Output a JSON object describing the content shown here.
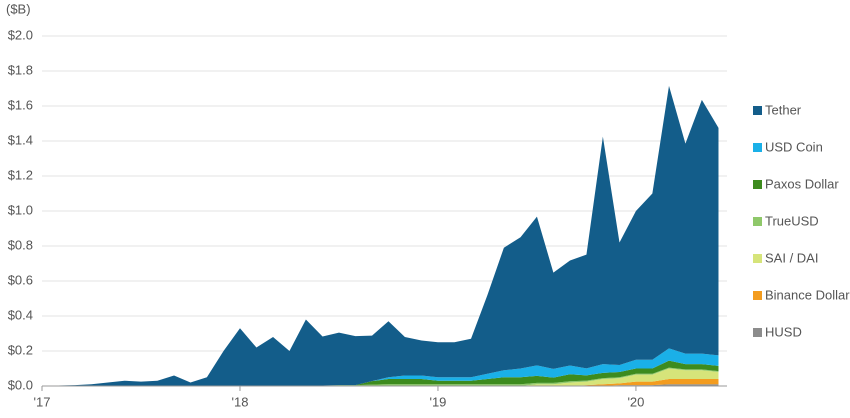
{
  "chart_data": {
    "type": "stacked_area",
    "y_axis_label": "($B)",
    "xlim": [
      2017,
      2020.46
    ],
    "xticks": [
      {
        "value": 2017,
        "label": "'17"
      },
      {
        "value": 2018,
        "label": "'18"
      },
      {
        "value": 2019,
        "label": "'19"
      },
      {
        "value": 2020,
        "label": "'20"
      }
    ],
    "ylim": [
      0,
      2.0
    ],
    "yticks": [
      {
        "value": 0,
        "label": "$0.0"
      },
      {
        "value": 0.2,
        "label": "$0.2"
      },
      {
        "value": 0.4,
        "label": "$0.4"
      },
      {
        "value": 0.6,
        "label": "$0.6"
      },
      {
        "value": 0.8,
        "label": "$0.8"
      },
      {
        "value": 1.0,
        "label": "$1.0"
      },
      {
        "value": 1.2,
        "label": "$1.2"
      },
      {
        "value": 1.4,
        "label": "$1.4"
      },
      {
        "value": 1.6,
        "label": "$1.6"
      },
      {
        "value": 1.8,
        "label": "$1.8"
      },
      {
        "value": 2.0,
        "label": "$2.0"
      }
    ],
    "grid": true,
    "legend": "right",
    "x": [
      2017.0,
      2017.083,
      2017.167,
      2017.25,
      2017.333,
      2017.417,
      2017.5,
      2017.583,
      2017.667,
      2017.75,
      2017.833,
      2017.917,
      2018.0,
      2018.083,
      2018.167,
      2018.25,
      2018.333,
      2018.417,
      2018.5,
      2018.583,
      2018.667,
      2018.75,
      2018.833,
      2018.917,
      2019.0,
      2019.083,
      2019.167,
      2019.25,
      2019.333,
      2019.417,
      2019.5,
      2019.583,
      2019.667,
      2019.75,
      2019.833,
      2019.917,
      2020.0,
      2020.083,
      2020.167,
      2020.25,
      2020.333,
      2020.417
    ],
    "series": [
      {
        "name": "Tether",
        "color": "#135d8a",
        "values": [
          0.002,
          0.003,
          0.005,
          0.01,
          0.02,
          0.03,
          0.025,
          0.03,
          0.06,
          0.02,
          0.05,
          0.2,
          0.33,
          0.22,
          0.28,
          0.2,
          0.38,
          0.28,
          0.3,
          0.28,
          0.26,
          0.32,
          0.22,
          0.2,
          0.2,
          0.2,
          0.22,
          0.45,
          0.7,
          0.75,
          0.85,
          0.55,
          0.6,
          0.65,
          1.3,
          0.7,
          0.85,
          0.95,
          1.5,
          1.2,
          1.45,
          1.3
        ]
      },
      {
        "name": "USD Coin",
        "color": "#1ab0e8",
        "values": [
          0,
          0,
          0,
          0,
          0,
          0,
          0,
          0,
          0,
          0,
          0,
          0,
          0,
          0,
          0,
          0,
          0,
          0,
          0,
          0,
          0,
          0.01,
          0.02,
          0.02,
          0.02,
          0.02,
          0.02,
          0.03,
          0.04,
          0.05,
          0.06,
          0.05,
          0.05,
          0.04,
          0.05,
          0.04,
          0.05,
          0.05,
          0.07,
          0.06,
          0.06,
          0.06
        ]
      },
      {
        "name": "Paxos Dollar",
        "color": "#3d8b1e",
        "values": [
          0,
          0,
          0,
          0,
          0,
          0,
          0,
          0,
          0,
          0,
          0,
          0,
          0,
          0,
          0,
          0,
          0,
          0,
          0,
          0,
          0.02,
          0.03,
          0.03,
          0.03,
          0.02,
          0.02,
          0.02,
          0.03,
          0.04,
          0.04,
          0.04,
          0.03,
          0.04,
          0.03,
          0.03,
          0.03,
          0.03,
          0.03,
          0.04,
          0.03,
          0.03,
          0.03
        ]
      },
      {
        "name": "TrueUSD",
        "color": "#8fc86a",
        "values": [
          0,
          0,
          0,
          0,
          0,
          0,
          0,
          0,
          0,
          0,
          0,
          0,
          0,
          0,
          0,
          0,
          0,
          0.003,
          0.005,
          0.005,
          0.008,
          0.01,
          0.01,
          0.01,
          0.01,
          0.01,
          0.01,
          0.01,
          0.01,
          0.01,
          0.008,
          0.008,
          0.007,
          0.006,
          0.005,
          0.005,
          0.005,
          0.005,
          0.005,
          0.005,
          0.005,
          0.005
        ]
      },
      {
        "name": "SAI / DAI",
        "color": "#d6e47a",
        "values": [
          0,
          0,
          0,
          0,
          0,
          0,
          0,
          0,
          0,
          0,
          0,
          0,
          0,
          0,
          0,
          0,
          0,
          0,
          0,
          0,
          0,
          0,
          0,
          0,
          0,
          0,
          0,
          0,
          0,
          0,
          0.01,
          0.01,
          0.02,
          0.02,
          0.03,
          0.03,
          0.04,
          0.04,
          0.06,
          0.05,
          0.05,
          0.04
        ]
      },
      {
        "name": "Binance Dollar",
        "color": "#f39c1f",
        "values": [
          0,
          0,
          0,
          0,
          0,
          0,
          0,
          0,
          0,
          0,
          0,
          0,
          0,
          0,
          0,
          0,
          0,
          0,
          0,
          0,
          0,
          0,
          0,
          0,
          0,
          0,
          0,
          0,
          0,
          0,
          0,
          0,
          0,
          0.005,
          0.01,
          0.01,
          0.02,
          0.02,
          0.03,
          0.03,
          0.03,
          0.03
        ]
      },
      {
        "name": "HUSD",
        "color": "#8c8c8c",
        "values": [
          0,
          0,
          0,
          0,
          0,
          0,
          0,
          0,
          0,
          0,
          0,
          0,
          0,
          0,
          0,
          0,
          0,
          0,
          0,
          0,
          0,
          0,
          0,
          0,
          0,
          0,
          0,
          0,
          0,
          0,
          0,
          0,
          0,
          0,
          0,
          0.005,
          0.005,
          0.005,
          0.01,
          0.01,
          0.01,
          0.01
        ]
      }
    ]
  }
}
